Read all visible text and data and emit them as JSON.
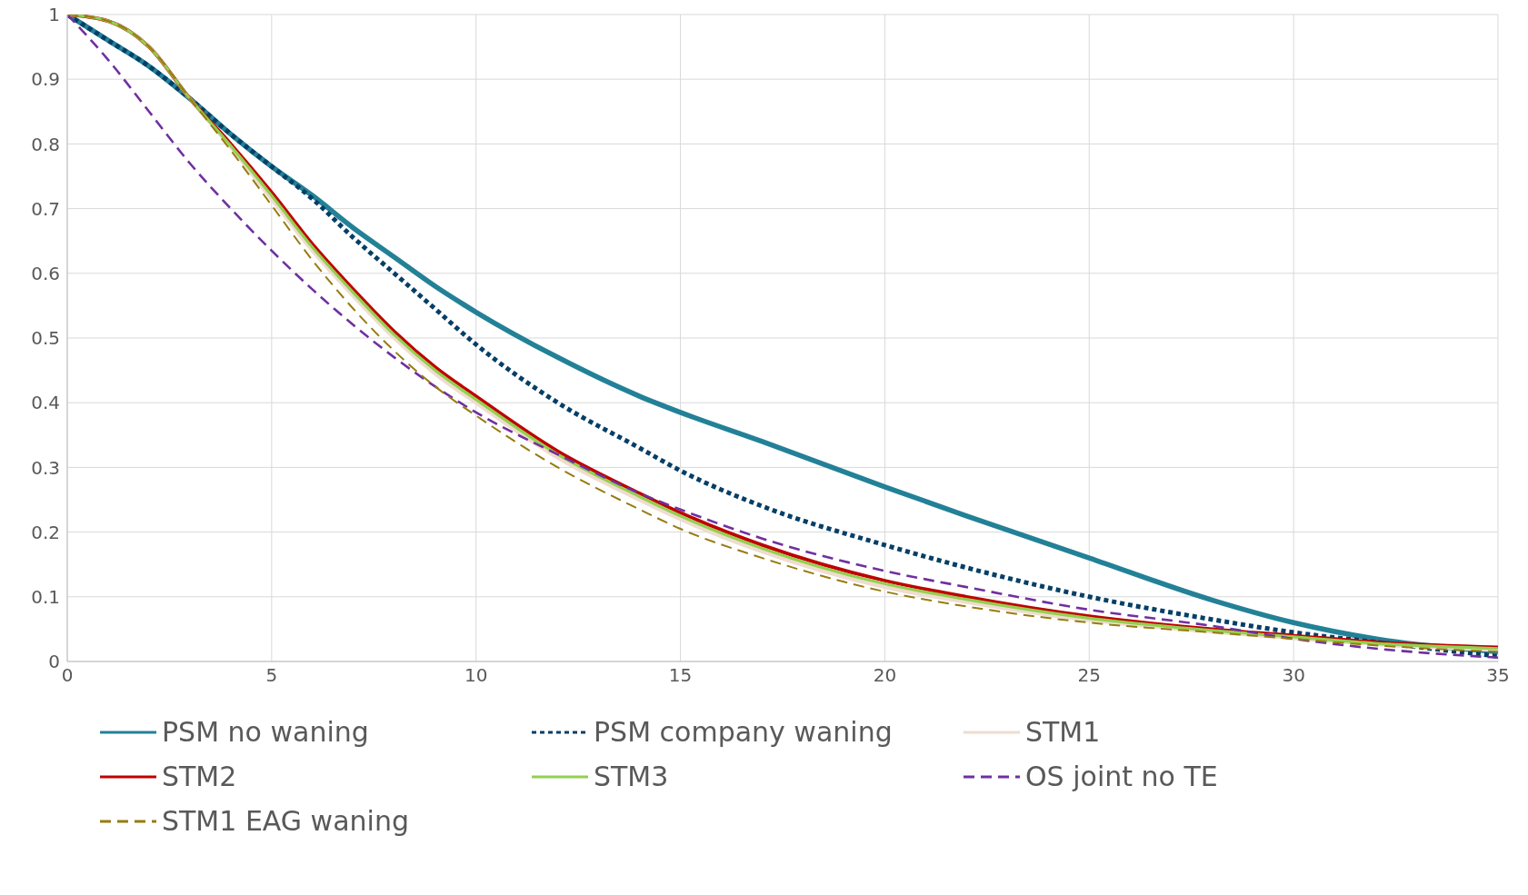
{
  "chart_data": {
    "type": "line",
    "x": [
      0,
      1,
      2,
      3,
      4,
      5,
      6,
      7,
      8,
      9,
      10,
      12,
      14,
      15,
      17,
      20,
      22,
      25,
      28,
      30,
      32,
      35
    ],
    "xlim": [
      0,
      35
    ],
    "xticks": [
      0,
      5,
      10,
      15,
      20,
      25,
      30,
      35
    ],
    "ylim": [
      0,
      1
    ],
    "yticks": [
      0,
      0.1,
      0.2,
      0.3,
      0.4,
      0.5,
      0.6,
      0.7,
      0.8,
      0.9,
      1
    ],
    "grid": true,
    "legend": "bottom",
    "marker": "none",
    "series": [
      {
        "name": "PSM no waning",
        "color": "#238197",
        "line_style": "solid",
        "values": [
          1,
          0.96,
          0.92,
          0.87,
          0.815,
          0.765,
          0.72,
          0.67,
          0.625,
          0.58,
          0.54,
          0.47,
          0.41,
          0.385,
          0.34,
          0.27,
          0.225,
          0.16,
          0.095,
          0.06,
          0.035,
          0.015
        ]
      },
      {
        "name": "PSM company waning",
        "color": "#053f66",
        "line_style": "dotted",
        "values": [
          1,
          0.96,
          0.92,
          0.87,
          0.815,
          0.765,
          0.715,
          0.655,
          0.6,
          0.545,
          0.49,
          0.4,
          0.33,
          0.295,
          0.24,
          0.18,
          0.145,
          0.1,
          0.065,
          0.045,
          0.03,
          0.008
        ]
      },
      {
        "name": "STM1",
        "color": "#efdccf",
        "line_style": "solid",
        "values": [
          1,
          0.99,
          0.95,
          0.87,
          0.795,
          0.715,
          0.635,
          0.565,
          0.5,
          0.445,
          0.4,
          0.315,
          0.25,
          0.22,
          0.17,
          0.115,
          0.092,
          0.064,
          0.046,
          0.036,
          0.027,
          0.018
        ]
      },
      {
        "name": "STM2",
        "color": "#c00000",
        "line_style": "solid",
        "values": [
          1,
          0.99,
          0.95,
          0.87,
          0.8,
          0.725,
          0.645,
          0.575,
          0.51,
          0.455,
          0.41,
          0.325,
          0.26,
          0.23,
          0.18,
          0.125,
          0.1,
          0.07,
          0.05,
          0.04,
          0.03,
          0.022
        ]
      },
      {
        "name": "STM3",
        "color": "#92d050",
        "line_style": "solid",
        "values": [
          1,
          0.99,
          0.95,
          0.87,
          0.797,
          0.72,
          0.64,
          0.57,
          0.505,
          0.45,
          0.405,
          0.32,
          0.255,
          0.225,
          0.175,
          0.12,
          0.096,
          0.067,
          0.048,
          0.038,
          0.028,
          0.02
        ]
      },
      {
        "name": "OS joint no TE",
        "color": "#7030a0",
        "line_style": "dashed",
        "values": [
          1,
          0.93,
          0.85,
          0.77,
          0.7,
          0.635,
          0.575,
          0.52,
          0.47,
          0.425,
          0.385,
          0.32,
          0.26,
          0.235,
          0.19,
          0.14,
          0.115,
          0.08,
          0.055,
          0.035,
          0.02,
          0.006
        ]
      },
      {
        "name": "STM1 EAG waning",
        "color": "#967c10",
        "line_style": "dashed",
        "values": [
          1,
          0.99,
          0.95,
          0.87,
          0.79,
          0.705,
          0.62,
          0.545,
          0.48,
          0.425,
          0.38,
          0.3,
          0.235,
          0.205,
          0.16,
          0.108,
          0.085,
          0.06,
          0.045,
          0.035,
          0.025,
          0.015
        ]
      }
    ]
  }
}
